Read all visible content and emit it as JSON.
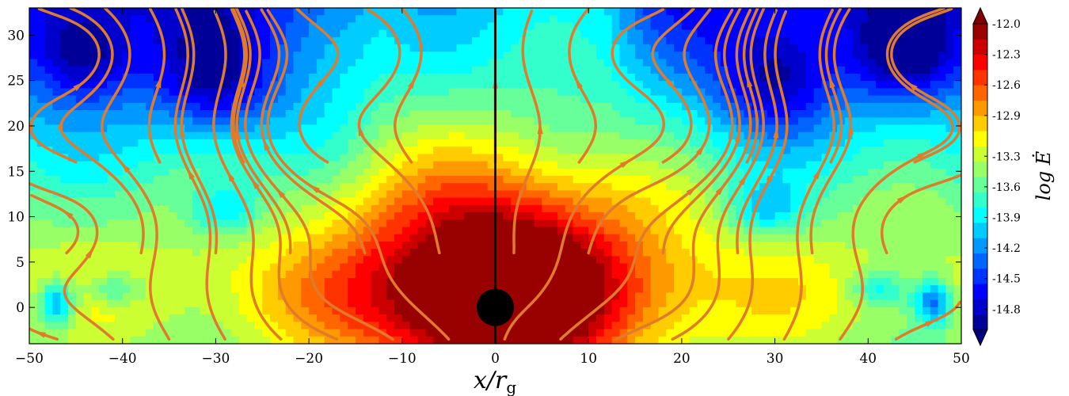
{
  "chart_data": {
    "type": "heatmap",
    "xlabel": "x/r",
    "xlabel_sub": "g",
    "cbar_label": "log Ė",
    "xlim": [
      -50,
      50
    ],
    "ylim": [
      -4,
      33
    ],
    "x_ticks": [
      -50,
      -40,
      -30,
      -20,
      -10,
      0,
      10,
      20,
      30,
      40,
      50
    ],
    "x_tick_labels": [
      "−50",
      "−40",
      "−30",
      "−20",
      "−10",
      "0",
      "10",
      "20",
      "30",
      "40",
      "50"
    ],
    "y_ticks": [
      0,
      5,
      10,
      15,
      20,
      25,
      30
    ],
    "y_tick_labels": [
      "0",
      "5",
      "10",
      "15",
      "20",
      "25",
      "30"
    ],
    "colorbar": {
      "min": -15.0,
      "max": -12.0,
      "levels": 20,
      "ticks": [
        -12.0,
        -12.3,
        -12.6,
        -12.9,
        -13.3,
        -13.6,
        -13.9,
        -14.2,
        -14.5,
        -14.8
      ],
      "tick_labels": [
        "-12.0",
        "-12.3",
        "-12.6",
        "-12.9",
        "-13.3",
        "-13.6",
        "-13.9",
        "-14.2",
        "-14.5",
        "-14.8"
      ],
      "extend": "both",
      "colormap": "jet"
    },
    "central_object": {
      "x": 0,
      "y": 0,
      "radius": 2
    },
    "divider_x": 0,
    "streamline_color": "#e07b2c",
    "grid": false,
    "legend": "none"
  }
}
